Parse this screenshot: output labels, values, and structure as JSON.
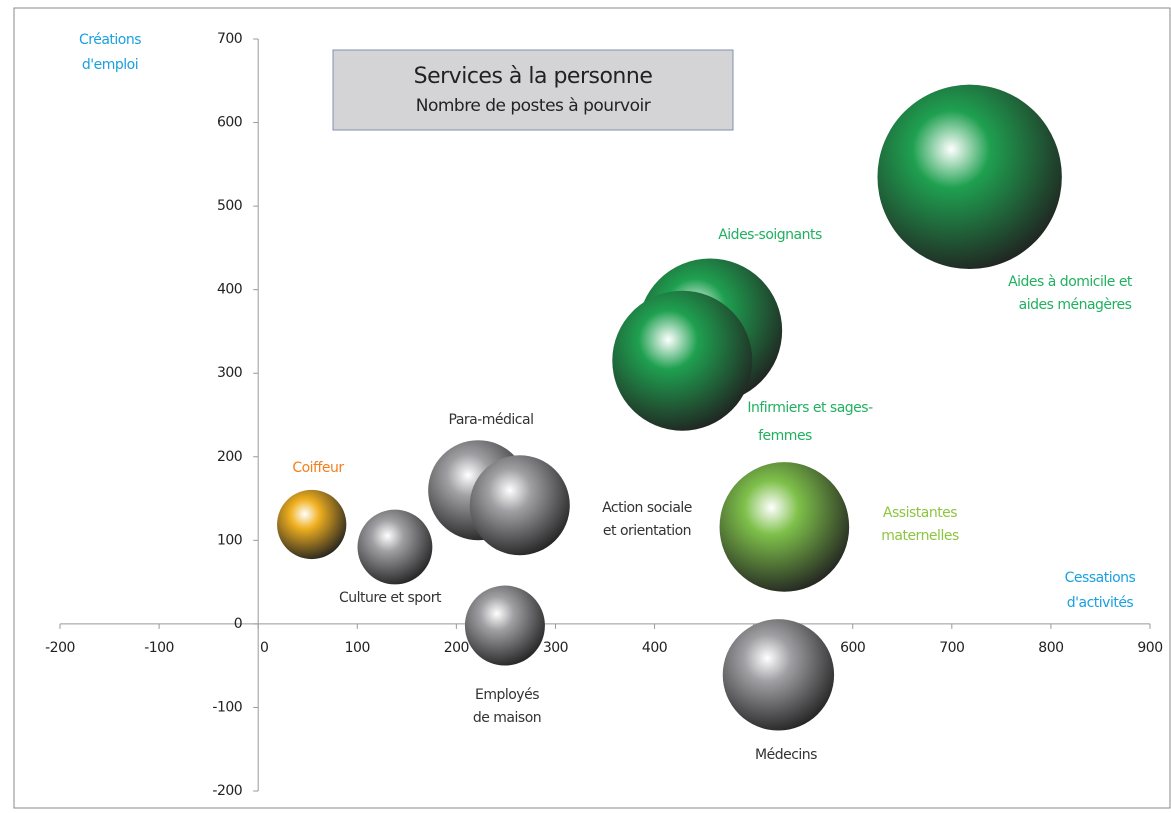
{
  "chart_data": {
    "type": "bubble",
    "title": "Services à la personne",
    "subtitle": "Nombre de postes à pourvoir",
    "y_label": [
      "Créations",
      "d'emploi"
    ],
    "x_label": [
      "Cessations",
      "d'activités"
    ],
    "xlim": [
      -200,
      900
    ],
    "xticks": [
      -200,
      -100,
      0,
      100,
      200,
      300,
      400,
      500,
      600,
      700,
      800,
      900
    ],
    "ylim": [
      -200,
      700
    ],
    "yticks": [
      -200,
      -100,
      0,
      100,
      200,
      300,
      400,
      500,
      600,
      700
    ],
    "series": [
      {
        "label": [
          "Coiffeur"
        ],
        "color": "#f0b020",
        "label_color": "#f08020",
        "x": [
          54
        ],
        "values": [
          119
        ],
        "sizes": [
          12
        ]
      },
      {
        "label": [
          "Culture et sport"
        ],
        "color": "#a0a0a4",
        "label_color": "#333333",
        "x": [
          138
        ],
        "values": [
          92
        ],
        "sizes": [
          14
        ]
      },
      {
        "label": [
          "Para-médical"
        ],
        "color": "#a0a0a4",
        "label_color": "#333333",
        "x": [
          222
        ],
        "values": [
          160
        ],
        "sizes": [
          25
        ]
      },
      {
        "label": [
          "Action sociale",
          "et orientation"
        ],
        "color": "#a0a0a4",
        "label_color": "#333333",
        "x": [
          264
        ],
        "values": [
          142
        ],
        "sizes": [
          25
        ]
      },
      {
        "label": [
          "Employés",
          "de maison"
        ],
        "color": "#a0a0a4",
        "label_color": "#333333",
        "x": [
          249
        ],
        "values": [
          -2
        ],
        "sizes": [
          16
        ]
      },
      {
        "label": [
          "Médecins"
        ],
        "color": "#a0a0a4",
        "label_color": "#333333",
        "x": [
          525
        ],
        "values": [
          -61
        ],
        "sizes": [
          31
        ]
      },
      {
        "label": [
          "Assistantes",
          "maternelles"
        ],
        "color": "#7ec04a",
        "label_color": "#8cc63f",
        "x": [
          531
        ],
        "values": [
          116
        ],
        "sizes": [
          42
        ]
      },
      {
        "label": [
          "Aides-soignants"
        ],
        "color": "#1fa050",
        "label_color": "#20b060",
        "x": [
          456
        ],
        "values": [
          351
        ],
        "sizes": [
          52
        ]
      },
      {
        "label": [
          "Infirmiers et sages-",
          "femmes"
        ],
        "color": "#1fa050",
        "label_color": "#20b060",
        "x": [
          428
        ],
        "values": [
          315
        ],
        "sizes": [
          49
        ]
      },
      {
        "label": [
          "Aides à domicile et",
          "aides ménagères"
        ],
        "color": "#1fa050",
        "label_color": "#20b060",
        "x": [
          718
        ],
        "values": [
          535
        ],
        "sizes": [
          85
        ]
      }
    ]
  }
}
